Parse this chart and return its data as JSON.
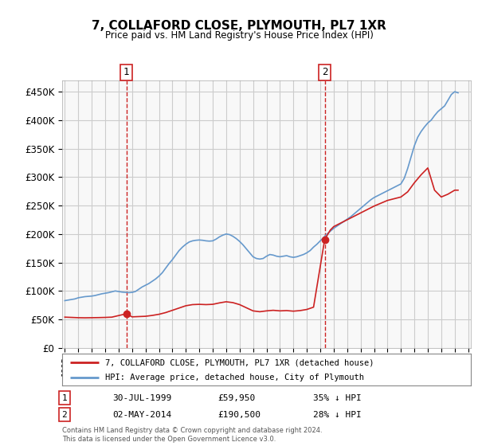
{
  "title": "7, COLLAFORD CLOSE, PLYMOUTH, PL7 1XR",
  "subtitle": "Price paid vs. HM Land Registry's House Price Index (HPI)",
  "footer": "Contains HM Land Registry data © Crown copyright and database right 2024.\nThis data is licensed under the Open Government Licence v3.0.",
  "legend_line1": "7, COLLAFORD CLOSE, PLYMOUTH, PL7 1XR (detached house)",
  "legend_line2": "HPI: Average price, detached house, City of Plymouth",
  "sale1_label": "1",
  "sale1_date": "30-JUL-1999",
  "sale1_price": "£59,950",
  "sale1_hpi": "35% ↓ HPI",
  "sale1_year": 1999.58,
  "sale1_value": 59950,
  "sale2_label": "2",
  "sale2_date": "02-MAY-2014",
  "sale2_price": "£190,500",
  "sale2_hpi": "28% ↓ HPI",
  "sale2_year": 2014.33,
  "sale2_value": 190500,
  "hpi_color": "#6699cc",
  "price_color": "#cc2222",
  "marker_color": "#cc2222",
  "ylim": [
    0,
    470000
  ],
  "yticks": [
    0,
    50000,
    100000,
    150000,
    200000,
    250000,
    300000,
    350000,
    400000,
    450000
  ],
  "hpi_years": [
    1995,
    1995.25,
    1995.5,
    1995.75,
    1996,
    1996.25,
    1996.5,
    1996.75,
    1997,
    1997.25,
    1997.5,
    1997.75,
    1998,
    1998.25,
    1998.5,
    1998.75,
    1999,
    1999.25,
    1999.5,
    1999.75,
    2000,
    2000.25,
    2000.5,
    2000.75,
    2001,
    2001.25,
    2001.5,
    2001.75,
    2002,
    2002.25,
    2002.5,
    2002.75,
    2003,
    2003.25,
    2003.5,
    2003.75,
    2004,
    2004.25,
    2004.5,
    2004.75,
    2005,
    2005.25,
    2005.5,
    2005.75,
    2006,
    2006.25,
    2006.5,
    2006.75,
    2007,
    2007.25,
    2007.5,
    2007.75,
    2008,
    2008.25,
    2008.5,
    2008.75,
    2009,
    2009.25,
    2009.5,
    2009.75,
    2010,
    2010.25,
    2010.5,
    2010.75,
    2011,
    2011.25,
    2011.5,
    2011.75,
    2012,
    2012.25,
    2012.5,
    2012.75,
    2013,
    2013.25,
    2013.5,
    2013.75,
    2014,
    2014.25,
    2014.5,
    2014.75,
    2015,
    2015.25,
    2015.5,
    2015.75,
    2016,
    2016.25,
    2016.5,
    2016.75,
    2017,
    2017.25,
    2017.5,
    2017.75,
    2018,
    2018.25,
    2018.5,
    2018.75,
    2019,
    2019.25,
    2019.5,
    2019.75,
    2020,
    2020.25,
    2020.5,
    2020.75,
    2021,
    2021.25,
    2021.5,
    2021.75,
    2022,
    2022.25,
    2022.5,
    2022.75,
    2023,
    2023.25,
    2023.5,
    2023.75,
    2024,
    2024.25
  ],
  "hpi_values": [
    83000,
    84000,
    85000,
    86000,
    88000,
    89000,
    90000,
    90500,
    91000,
    92000,
    93500,
    95000,
    96000,
    97000,
    98500,
    100000,
    99000,
    98000,
    97500,
    97000,
    97500,
    99000,
    103000,
    107000,
    110000,
    113000,
    117000,
    121000,
    126000,
    132000,
    140000,
    148000,
    155000,
    163000,
    171000,
    177000,
    182000,
    186000,
    188000,
    189000,
    189500,
    189000,
    188000,
    187500,
    188000,
    191000,
    195000,
    198000,
    200000,
    199000,
    196000,
    192000,
    187000,
    181000,
    174000,
    167000,
    160000,
    157000,
    156000,
    157000,
    161000,
    164000,
    163000,
    161000,
    160000,
    161000,
    162000,
    160000,
    159000,
    160000,
    162000,
    164000,
    167000,
    171000,
    177000,
    182000,
    188000,
    194000,
    200000,
    205000,
    210000,
    214000,
    218000,
    222000,
    226000,
    230000,
    235000,
    240000,
    245000,
    250000,
    255000,
    260000,
    264000,
    267000,
    270000,
    273000,
    276000,
    279000,
    282000,
    285000,
    288000,
    298000,
    315000,
    335000,
    355000,
    370000,
    380000,
    388000,
    395000,
    400000,
    408000,
    415000,
    420000,
    425000,
    435000,
    445000,
    450000,
    448000
  ],
  "price_years": [
    1995,
    1995.5,
    1996,
    1996.5,
    1997,
    1997.5,
    1998,
    1998.5,
    1999.58,
    2000,
    2000.5,
    2001,
    2001.5,
    2002,
    2002.5,
    2003,
    2003.5,
    2004,
    2004.5,
    2005,
    2005.5,
    2006,
    2006.5,
    2007,
    2007.5,
    2008,
    2008.5,
    2009,
    2009.5,
    2010,
    2010.5,
    2011,
    2011.5,
    2012,
    2012.5,
    2013,
    2013.5,
    2014.33,
    2014.75,
    2015,
    2015.5,
    2016,
    2016.5,
    2017,
    2017.5,
    2018,
    2018.5,
    2019,
    2019.5,
    2020,
    2020.5,
    2021,
    2021.5,
    2022,
    2022.5,
    2023,
    2023.5,
    2024,
    2024.25
  ],
  "price_values": [
    54000,
    53500,
    53000,
    52800,
    53000,
    53200,
    53500,
    54000,
    59950,
    54500,
    55000,
    55500,
    57000,
    59000,
    62000,
    66000,
    70000,
    74000,
    76000,
    76500,
    76000,
    76500,
    79000,
    81000,
    79500,
    76000,
    70500,
    65000,
    63500,
    65000,
    66000,
    65000,
    65500,
    64500,
    65500,
    67500,
    71500,
    190500,
    207000,
    213000,
    219000,
    225000,
    231000,
    237000,
    243000,
    249000,
    254000,
    259000,
    262000,
    265000,
    274000,
    290000,
    304000,
    316000,
    277000,
    265000,
    270000,
    277000,
    277000
  ],
  "xtick_years": [
    1995,
    1996,
    1997,
    1998,
    1999,
    2000,
    2001,
    2002,
    2003,
    2004,
    2005,
    2006,
    2007,
    2008,
    2009,
    2010,
    2011,
    2012,
    2013,
    2014,
    2015,
    2016,
    2017,
    2018,
    2019,
    2020,
    2021,
    2022,
    2023,
    2024,
    2025
  ],
  "sale1_vline_x": 1999.58,
  "sale2_vline_x": 2014.33,
  "bg_color": "#ffffff",
  "grid_color": "#cccccc",
  "plot_bg": "#f8f8f8"
}
